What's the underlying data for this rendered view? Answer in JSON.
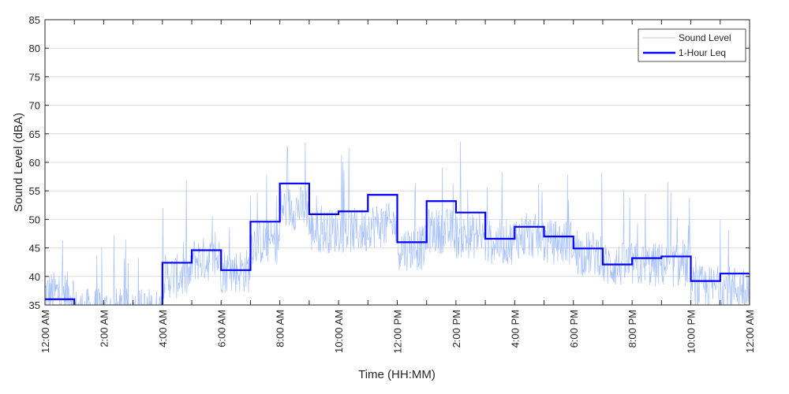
{
  "chart_data": {
    "type": "line",
    "title": "",
    "xlabel": "Time (HH:MM)",
    "ylabel": "Sound Level (dBA)",
    "ylim": [
      35,
      85
    ],
    "yticks": [
      35,
      40,
      45,
      50,
      55,
      60,
      65,
      70,
      75,
      80,
      85
    ],
    "xlim_hours": [
      0,
      24
    ],
    "xtick_labels": [
      "12:00 AM",
      "2:00 AM",
      "4:00 AM",
      "6:00 AM",
      "8:00 AM",
      "10:00 AM",
      "12:00 PM",
      "2:00 PM",
      "4:00 PM",
      "6:00 PM",
      "8:00 PM",
      "10:00 PM",
      "12:00 AM"
    ],
    "grid": "horizontal",
    "legend_position": "top-right",
    "series": [
      {
        "name": "Sound Level",
        "color": "#a8c2fa",
        "style": "thin line",
        "note_hourly_typical": [
          37,
          34,
          34,
          34,
          40,
          43,
          41,
          46,
          52,
          48,
          48,
          49,
          45,
          48,
          47,
          46,
          47,
          46,
          44,
          42,
          42,
          42,
          38,
          38
        ]
      },
      {
        "name": "1-Hour Leq",
        "color": "#0000ff",
        "style": "stairs",
        "hours": [
          0,
          1,
          2,
          3,
          4,
          5,
          6,
          7,
          8,
          9,
          10,
          11,
          12,
          13,
          14,
          15,
          16,
          17,
          18,
          19,
          20,
          21,
          22,
          23
        ],
        "values": [
          36.0,
          null,
          null,
          null,
          42.4,
          44.6,
          41.1,
          49.6,
          56.3,
          50.9,
          51.4,
          54.3,
          46.0,
          53.2,
          51.2,
          46.6,
          48.7,
          47.0,
          44.9,
          42.1,
          43.2,
          43.5,
          39.2,
          40.5
        ]
      }
    ]
  }
}
